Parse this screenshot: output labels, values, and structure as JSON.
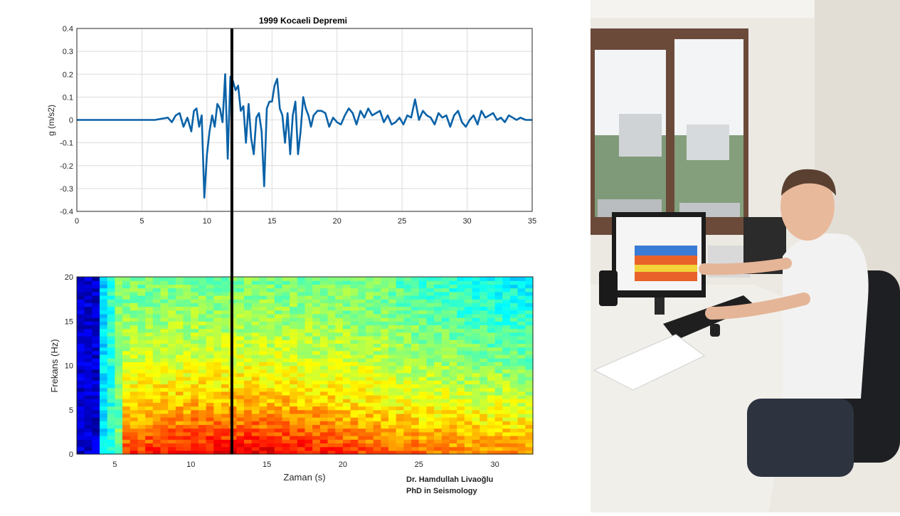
{
  "chart_data": [
    {
      "type": "line",
      "title": "1999 Kocaeli Depremi",
      "xlabel": "",
      "ylabel": "g (m/s2)",
      "xlim": [
        0,
        35
      ],
      "ylim": [
        -0.4,
        0.4
      ],
      "xticks": [
        "0",
        "5",
        "10",
        "15",
        "20",
        "25",
        "30",
        "35"
      ],
      "yticks": [
        "0.4",
        "0.3",
        "0.2",
        "0.1",
        "0",
        "-0.1",
        "-0.2",
        "-0.3",
        "-0.4"
      ],
      "grid": true,
      "line_color": "#0a62a8",
      "marker_time_s": 12.1,
      "series": [
        {
          "x": [
            0,
            2,
            4,
            6,
            6.5,
            7,
            7.3,
            7.6,
            7.9,
            8.2,
            8.5,
            8.8,
            9.0,
            9.2,
            9.4,
            9.6,
            9.8,
            10.0,
            10.2,
            10.4,
            10.6,
            10.8,
            11.0,
            11.2,
            11.4,
            11.6,
            11.8,
            12.0,
            12.2,
            12.4,
            12.6,
            12.8,
            13.0,
            13.2,
            13.4,
            13.6,
            13.8,
            14.0,
            14.2,
            14.4,
            14.6,
            14.8,
            15.0,
            15.2,
            15.4,
            15.6,
            15.8,
            16.0,
            16.2,
            16.4,
            16.6,
            16.8,
            17.0,
            17.2,
            17.4,
            17.6,
            17.8,
            18.0,
            18.2,
            18.5,
            18.8,
            19.1,
            19.4,
            19.7,
            20.0,
            20.3,
            20.6,
            20.9,
            21.2,
            21.5,
            21.8,
            22.1,
            22.4,
            22.7,
            23.0,
            23.3,
            23.6,
            23.9,
            24.2,
            24.5,
            24.8,
            25.1,
            25.4,
            25.7,
            26.0,
            26.3,
            26.6,
            26.9,
            27.2,
            27.5,
            27.8,
            28.1,
            28.4,
            28.7,
            29.0,
            29.3,
            29.6,
            29.9,
            30.2,
            30.5,
            30.8,
            31.1,
            31.4,
            31.7,
            32.0,
            32.3,
            32.6,
            32.9,
            33.2,
            33.5,
            33.8,
            34.1,
            34.5,
            35
          ],
          "y": [
            0,
            0,
            0,
            0,
            0.005,
            0.01,
            -0.01,
            0.02,
            0.03,
            -0.03,
            0.01,
            -0.05,
            0.04,
            0.05,
            -0.03,
            0.02,
            -0.34,
            -0.15,
            -0.05,
            0.02,
            -0.03,
            0.07,
            0.05,
            -0.01,
            0.2,
            -0.17,
            0.19,
            0.17,
            0.13,
            0.15,
            0.04,
            0.06,
            -0.1,
            0.07,
            -0.08,
            -0.15,
            0.01,
            0.03,
            -0.05,
            -0.29,
            0.05,
            0.08,
            0.08,
            0.15,
            0.18,
            0.05,
            0.02,
            -0.1,
            0.03,
            -0.15,
            0.02,
            0.08,
            -0.15,
            -0.05,
            0.1,
            0.05,
            0.02,
            -0.03,
            0.02,
            0.04,
            0.04,
            0.03,
            -0.03,
            0.01,
            -0.01,
            -0.02,
            0.02,
            0.05,
            0.03,
            -0.02,
            0.04,
            0.01,
            0.05,
            0.02,
            0.03,
            0.04,
            -0.01,
            0.02,
            -0.02,
            -0.01,
            0.01,
            -0.02,
            0.02,
            0.01,
            0.09,
            0.0,
            0.04,
            0.02,
            0.01,
            -0.02,
            0.03,
            0.01,
            0.02,
            -0.03,
            0.02,
            0.04,
            -0.01,
            -0.03,
            0.0,
            0.02,
            -0.02,
            0.04,
            0.01,
            0.02,
            0.03,
            0.0,
            0.01,
            -0.01,
            0.02,
            0.01,
            0.0,
            0.01,
            0.0,
            0.0
          ]
        }
      ]
    },
    {
      "type": "heatmap",
      "title": "",
      "xlabel": "Zaman (s)",
      "ylabel": "Frekans (Hz)",
      "xlim": [
        2.5,
        32.5
      ],
      "ylim": [
        0,
        20
      ],
      "xticks": [
        "5",
        "10",
        "15",
        "20",
        "25",
        "30"
      ],
      "yticks": [
        "20",
        "15",
        "10",
        "5",
        "0"
      ],
      "colormap": "jet",
      "marker_time_s": 12.7,
      "description_cols": 60,
      "description_rows": 48
    }
  ],
  "credit": {
    "name": "Dr. Hamdullah Livaoğlu",
    "degree": "PhD in Seismology"
  },
  "colors": {
    "line": "#0a62a8",
    "marker": "#000000",
    "grid": "#dcdcdc",
    "axis": "#262626"
  }
}
